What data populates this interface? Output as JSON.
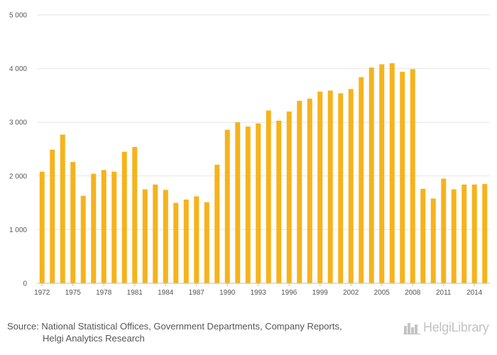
{
  "chart_data": {
    "type": "bar",
    "title": "",
    "xlabel": "",
    "ylabel": "",
    "categories": [
      "1972",
      "1973",
      "1974",
      "1975",
      "1976",
      "1977",
      "1978",
      "1979",
      "1980",
      "1981",
      "1982",
      "1983",
      "1984",
      "1985",
      "1986",
      "1987",
      "1988",
      "1989",
      "1990",
      "1991",
      "1992",
      "1993",
      "1994",
      "1995",
      "1996",
      "1997",
      "1998",
      "1999",
      "2000",
      "2001",
      "2002",
      "2003",
      "2004",
      "2005",
      "2006",
      "2007",
      "2008",
      "2009",
      "2010",
      "2011",
      "2012",
      "2013",
      "2014",
      "2015"
    ],
    "values": [
      2080,
      2490,
      2770,
      2260,
      1630,
      2040,
      2110,
      2080,
      2450,
      2540,
      1750,
      1840,
      1740,
      1500,
      1560,
      1620,
      1510,
      2210,
      2860,
      3000,
      2920,
      2980,
      3220,
      3030,
      3200,
      3400,
      3440,
      3570,
      3590,
      3540,
      3620,
      3840,
      4020,
      4080,
      4100,
      3940,
      3990,
      1760,
      1580,
      1950,
      1750,
      1840,
      1840,
      1850
    ],
    "xtick_labels": [
      "1972",
      "1975",
      "1978",
      "1981",
      "1984",
      "1987",
      "1990",
      "1993",
      "1996",
      "1999",
      "2002",
      "2005",
      "2008",
      "2011",
      "2014"
    ],
    "ytick_values": [
      0,
      1000,
      2000,
      3000,
      4000,
      5000
    ],
    "ytick_labels": [
      "0",
      "1 000",
      "2 000",
      "3 000",
      "4 000",
      "5 000"
    ],
    "ylim": [
      0,
      5000
    ],
    "grid": true,
    "bar_color": "#f5b31c"
  },
  "footer": {
    "source_line1": "Source: National Statistical Offices, Government Departments, Company Reports,",
    "source_line2": "Helgi Analytics Research"
  },
  "logo": {
    "text": "HelgiLibrary",
    "icon": "city-skyline-icon"
  }
}
